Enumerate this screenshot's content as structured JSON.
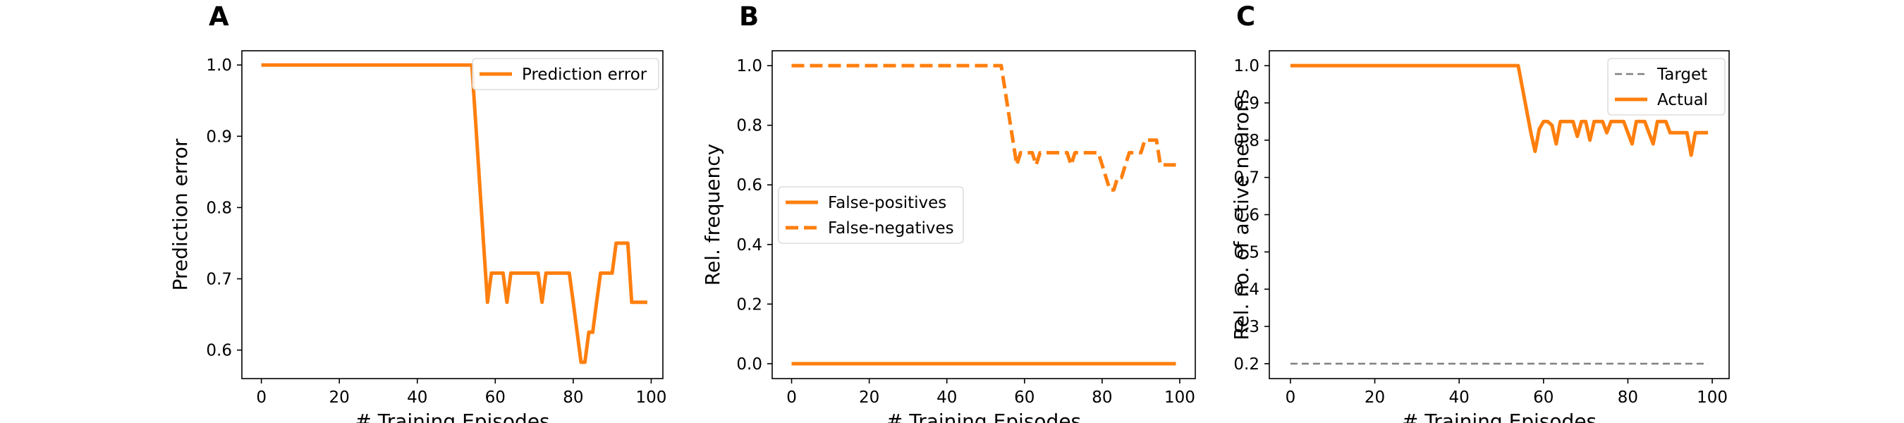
{
  "colors": {
    "orange": "#ff7f0e",
    "gray": "#808080",
    "axis": "#000000"
  },
  "chart_data": [
    {
      "panel": "A",
      "type": "line",
      "xlabel": "# Training Episodes",
      "ylabel": "Prediction error",
      "xlim": [
        -5,
        103
      ],
      "ylim": [
        0.56,
        1.02
      ],
      "xticks": [
        0,
        20,
        40,
        60,
        80,
        100
      ],
      "yticks": [
        0.6,
        0.7,
        0.8,
        0.9,
        1.0
      ],
      "ytick_labels": [
        "0.6",
        "0.7",
        "0.8",
        "0.9",
        "1.0"
      ],
      "grid": false,
      "legend_position": "top-right",
      "series": [
        {
          "name": "Prediction error",
          "style": "solid",
          "color": "#ff7f0e",
          "x": [
            0,
            54,
            55,
            56,
            57,
            58,
            59,
            60,
            61,
            62,
            63,
            64,
            65,
            66,
            67,
            68,
            69,
            70,
            71,
            72,
            73,
            74,
            75,
            76,
            77,
            78,
            79,
            80,
            81,
            82,
            83,
            84,
            85,
            86,
            87,
            88,
            89,
            90,
            91,
            92,
            93,
            94,
            95,
            96,
            97,
            98,
            99
          ],
          "y": [
            1.0,
            1.0,
            0.917,
            0.833,
            0.75,
            0.667,
            0.708,
            0.708,
            0.708,
            0.708,
            0.667,
            0.708,
            0.708,
            0.708,
            0.708,
            0.708,
            0.708,
            0.708,
            0.708,
            0.667,
            0.708,
            0.708,
            0.708,
            0.708,
            0.708,
            0.708,
            0.708,
            0.667,
            0.625,
            0.583,
            0.583,
            0.625,
            0.625,
            0.667,
            0.708,
            0.708,
            0.708,
            0.708,
            0.75,
            0.75,
            0.75,
            0.75,
            0.667,
            0.667,
            0.667,
            0.667,
            0.667
          ]
        }
      ]
    },
    {
      "panel": "B",
      "type": "line",
      "xlabel": "# Training Episodes",
      "ylabel": "Rel. frequency",
      "xlim": [
        -5,
        104
      ],
      "ylim": [
        -0.05,
        1.05
      ],
      "xticks": [
        0,
        20,
        40,
        60,
        80,
        100
      ],
      "yticks": [
        0.0,
        0.2,
        0.4,
        0.6,
        0.8,
        1.0
      ],
      "ytick_labels": [
        "0.0",
        "0.2",
        "0.4",
        "0.6",
        "0.8",
        "1.0"
      ],
      "grid": false,
      "legend_position": "center-left",
      "series": [
        {
          "name": "False-positives",
          "style": "solid",
          "color": "#ff7f0e",
          "x": [
            0,
            99
          ],
          "y": [
            0.0,
            0.0
          ]
        },
        {
          "name": "False-negatives",
          "style": "dashed",
          "color": "#ff7f0e",
          "x": [
            0,
            54,
            55,
            56,
            57,
            58,
            59,
            60,
            61,
            62,
            63,
            64,
            65,
            66,
            67,
            68,
            69,
            70,
            71,
            72,
            73,
            74,
            75,
            76,
            77,
            78,
            79,
            80,
            81,
            82,
            83,
            84,
            85,
            86,
            87,
            88,
            89,
            90,
            91,
            92,
            93,
            94,
            95,
            96,
            97,
            98,
            99
          ],
          "y": [
            1.0,
            1.0,
            0.917,
            0.833,
            0.75,
            0.667,
            0.708,
            0.708,
            0.708,
            0.708,
            0.667,
            0.708,
            0.708,
            0.708,
            0.708,
            0.708,
            0.708,
            0.708,
            0.708,
            0.667,
            0.708,
            0.708,
            0.708,
            0.708,
            0.708,
            0.708,
            0.708,
            0.667,
            0.625,
            0.583,
            0.583,
            0.625,
            0.625,
            0.667,
            0.708,
            0.708,
            0.708,
            0.708,
            0.75,
            0.75,
            0.75,
            0.75,
            0.667,
            0.667,
            0.667,
            0.667,
            0.667
          ]
        }
      ]
    },
    {
      "panel": "C",
      "type": "line",
      "xlabel": "# Training Episodes",
      "ylabel": "Rel. no. of active neurons",
      "xlim": [
        -5,
        104
      ],
      "ylim": [
        0.16,
        1.04
      ],
      "xticks": [
        0,
        20,
        40,
        60,
        80,
        100
      ],
      "yticks": [
        0.2,
        0.3,
        0.4,
        0.5,
        0.6,
        0.7,
        0.8,
        0.9,
        1.0
      ],
      "ytick_labels": [
        "0.2",
        "0.3",
        "0.4",
        "0.5",
        "0.6",
        "0.7",
        "0.8",
        "0.9",
        "1.0"
      ],
      "grid": false,
      "legend_position": "top-right",
      "series": [
        {
          "name": "Target",
          "style": "dashed-thin",
          "color": "#808080",
          "x": [
            0,
            99
          ],
          "y": [
            0.2,
            0.2
          ]
        },
        {
          "name": "Actual",
          "style": "solid",
          "color": "#ff7f0e",
          "x": [
            0,
            54,
            55,
            56,
            57,
            58,
            59,
            60,
            61,
            62,
            63,
            64,
            65,
            66,
            67,
            68,
            69,
            70,
            71,
            72,
            73,
            74,
            75,
            76,
            77,
            78,
            79,
            80,
            81,
            82,
            83,
            84,
            85,
            86,
            87,
            88,
            89,
            90,
            91,
            92,
            93,
            94,
            95,
            96,
            97,
            98,
            99
          ],
          "y": [
            1.0,
            1.0,
            0.94,
            0.88,
            0.82,
            0.77,
            0.83,
            0.85,
            0.85,
            0.84,
            0.79,
            0.85,
            0.85,
            0.85,
            0.85,
            0.81,
            0.85,
            0.85,
            0.8,
            0.85,
            0.85,
            0.85,
            0.82,
            0.85,
            0.85,
            0.85,
            0.85,
            0.82,
            0.79,
            0.85,
            0.85,
            0.85,
            0.82,
            0.79,
            0.85,
            0.85,
            0.85,
            0.82,
            0.82,
            0.82,
            0.82,
            0.82,
            0.76,
            0.82,
            0.82,
            0.82,
            0.82
          ]
        }
      ]
    }
  ]
}
